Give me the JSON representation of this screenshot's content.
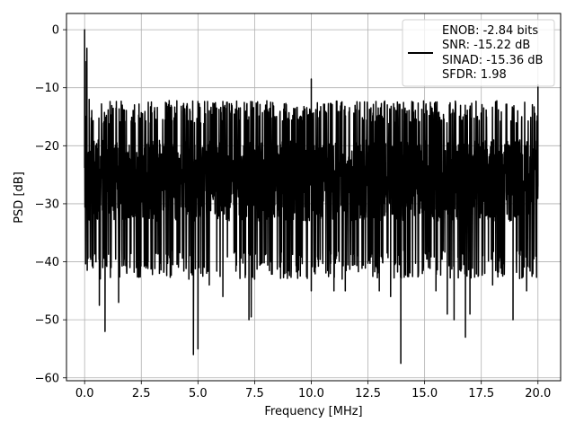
{
  "chart_data": {
    "type": "line",
    "xlabel": "Frequency [MHz]",
    "ylabel": "PSD [dB]",
    "xlim": [
      -0.8,
      21.0
    ],
    "ylim": [
      -60.5,
      2.8
    ],
    "xticks": [
      0.0,
      2.5,
      5.0,
      7.5,
      10.0,
      12.5,
      15.0,
      17.5,
      20.0
    ],
    "xtick_labels": [
      "0.0",
      "2.5",
      "5.0",
      "7.5",
      "10.0",
      "12.5",
      "15.0",
      "17.5",
      "20.0"
    ],
    "yticks": [
      0,
      -10,
      -20,
      -30,
      -40,
      -50,
      -60
    ],
    "ytick_labels": [
      "0",
      "−10",
      "−20",
      "−30",
      "−40",
      "−50",
      "−60"
    ],
    "grid": true,
    "legend_position": "top-right",
    "legend_entries": [
      "ENOB: -2.84 bits",
      "SNR: -15.22 dB",
      "SINAD: -15.36 dB",
      "SFDR: 1.98"
    ],
    "series": [
      {
        "color": "#000000",
        "noise_floor_db": -26,
        "typical_range_db": [
          -38,
          -15
        ],
        "points": [
          [
            0.0,
            0.0
          ],
          [
            0.03,
            -5.5
          ],
          [
            0.07,
            -15
          ],
          [
            0.1,
            -3.2
          ],
          [
            0.15,
            -25
          ],
          [
            0.2,
            -12
          ],
          [
            0.3,
            -23
          ],
          [
            0.38,
            -39
          ],
          [
            0.5,
            -28
          ],
          [
            0.6,
            -19
          ],
          [
            0.65,
            -47.5
          ],
          [
            0.8,
            -41
          ],
          [
            0.9,
            -52
          ],
          [
            1.5,
            -47
          ],
          [
            2.0,
            -41
          ],
          [
            2.8,
            -40
          ],
          [
            3.3,
            -42
          ],
          [
            4.6,
            -43
          ],
          [
            4.8,
            -56
          ],
          [
            5.0,
            -55
          ],
          [
            5.5,
            -44
          ],
          [
            6.1,
            -46
          ],
          [
            7.25,
            -50
          ],
          [
            7.35,
            -49.5
          ],
          [
            7.5,
            -43
          ],
          [
            10.0,
            -8.5
          ],
          [
            10.0,
            -45
          ],
          [
            11.0,
            -45
          ],
          [
            11.5,
            -45
          ],
          [
            13.0,
            -45
          ],
          [
            13.5,
            -46
          ],
          [
            13.95,
            -57.5
          ],
          [
            15.5,
            -45
          ],
          [
            16.0,
            -49
          ],
          [
            16.3,
            -50
          ],
          [
            16.8,
            -53
          ],
          [
            17.0,
            -49
          ],
          [
            18.0,
            -44
          ],
          [
            18.4,
            -42
          ],
          [
            18.9,
            -50
          ],
          [
            19.5,
            -45
          ],
          [
            20.0,
            -9.5
          ],
          [
            20.0,
            -27
          ]
        ]
      }
    ]
  }
}
